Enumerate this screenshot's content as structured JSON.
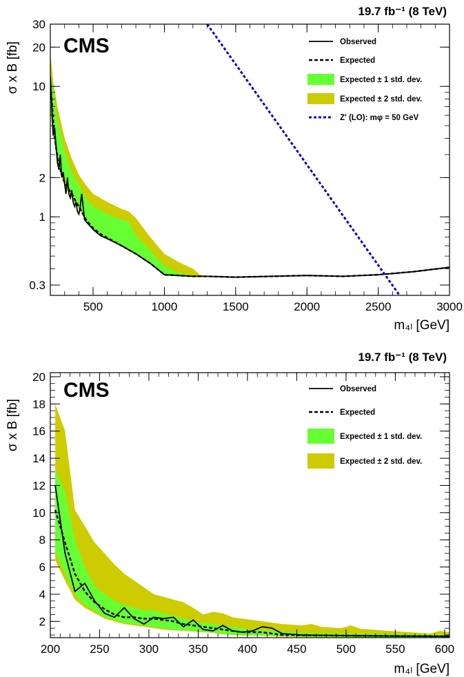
{
  "chart_data": [
    {
      "type": "line",
      "title": "",
      "cms_label": "CMS",
      "lumi_label": "19.7 fb⁻¹ (8 TeV)",
      "xlabel": "m₄ₗ [GeV]",
      "ylabel": "σ x B [fb]",
      "xlim": [
        200,
        3000
      ],
      "ylim": [
        0.25,
        30
      ],
      "yscale": "log",
      "x_ticks": [
        500,
        1000,
        1500,
        2000,
        2500,
        3000
      ],
      "x_tick_labels": [
        "500",
        "1000",
        "1500",
        "2000",
        "2500",
        "3000"
      ],
      "y_ticks": [
        0.3,
        1,
        2,
        10,
        20,
        30
      ],
      "y_tick_labels": [
        "0.3",
        "1",
        "2",
        "10",
        "20",
        "30"
      ],
      "legend_position": "top-right",
      "legend": [
        {
          "style": "solid",
          "label": "Observed"
        },
        {
          "style": "dashed",
          "label": "Expected"
        },
        {
          "style": "band1",
          "label": "Expected ± 1 std. dev."
        },
        {
          "style": "band2",
          "label": "Expected ± 2 std. dev."
        },
        {
          "style": "zprime",
          "label": "Z' (LO): mφ = 50 GeV"
        }
      ],
      "colors": {
        "band1": "#66ff33",
        "band2": "#cccc00",
        "zprime": "#0000cc",
        "line": "#000000"
      },
      "observed": {
        "x": [
          200,
          210,
          220,
          230,
          240,
          250,
          260,
          270,
          280,
          290,
          300,
          310,
          320,
          330,
          340,
          350,
          360,
          370,
          380,
          390,
          400,
          410,
          420,
          430,
          440,
          450,
          500,
          550,
          600,
          700,
          800,
          900,
          1000,
          1100,
          1200,
          1300,
          1500,
          1750,
          2000,
          2250,
          2500,
          2750,
          3000
        ],
        "y": [
          12,
          7,
          4.2,
          4.8,
          3.5,
          2.6,
          2.3,
          3.0,
          2.0,
          2.2,
          1.8,
          1.5,
          2.0,
          1.5,
          1.4,
          1.6,
          1.3,
          1.2,
          1.3,
          1.1,
          1.05,
          1.2,
          1.5,
          1.2,
          0.95,
          0.92,
          0.8,
          0.72,
          0.68,
          0.6,
          0.52,
          0.44,
          0.36,
          0.355,
          0.35,
          0.35,
          0.345,
          0.35,
          0.355,
          0.35,
          0.36,
          0.38,
          0.41
        ]
      },
      "expected": {
        "x": [
          200,
          210,
          220,
          230,
          240,
          250,
          260,
          270,
          280,
          290,
          300,
          320,
          340,
          360,
          380,
          400,
          420,
          440,
          450,
          500,
          550,
          600,
          700,
          800,
          900,
          1000,
          1100,
          1200,
          1300,
          1500,
          1750,
          2000,
          2250,
          2500,
          2750,
          3000
        ],
        "y": [
          10,
          7.8,
          5.5,
          4.2,
          3.4,
          2.9,
          2.5,
          2.3,
          2.1,
          1.95,
          1.85,
          1.7,
          1.55,
          1.45,
          1.3,
          1.2,
          1.1,
          1.0,
          0.95,
          0.82,
          0.74,
          0.69,
          0.6,
          0.52,
          0.44,
          0.36,
          0.355,
          0.35,
          0.35,
          0.345,
          0.35,
          0.355,
          0.35,
          0.36,
          0.38,
          0.41
        ]
      },
      "band1": {
        "x": [
          200,
          220,
          250,
          300,
          350,
          400,
          450,
          500,
          600,
          700,
          750,
          800,
          900,
          1000,
          1100,
          1200,
          1300,
          1500,
          1750,
          2000,
          2250,
          2500,
          2750,
          3000
        ],
        "lo": [
          7.2,
          4.5,
          2.8,
          1.8,
          1.45,
          1.2,
          0.95,
          0.82,
          0.69,
          0.6,
          0.56,
          0.52,
          0.44,
          0.36,
          0.355,
          0.35,
          0.35,
          0.345,
          0.35,
          0.355,
          0.35,
          0.36,
          0.38,
          0.41
        ],
        "hi": [
          13,
          9.5,
          5.5,
          3.2,
          2.2,
          1.75,
          1.4,
          1.2,
          1.05,
          0.95,
          0.92,
          0.72,
          0.55,
          0.42,
          0.37,
          0.355,
          0.35,
          0.345,
          0.35,
          0.355,
          0.35,
          0.36,
          0.38,
          0.41
        ]
      },
      "band2": {
        "x": [
          200,
          220,
          250,
          300,
          350,
          400,
          450,
          500,
          600,
          700,
          750,
          800,
          900,
          1000,
          1100,
          1200,
          1250,
          1300,
          1500,
          1750,
          2000,
          2250,
          2500,
          2750,
          3000
        ],
        "lo": [
          6.5,
          4.2,
          2.6,
          1.7,
          1.4,
          1.15,
          0.92,
          0.8,
          0.68,
          0.59,
          0.55,
          0.52,
          0.44,
          0.36,
          0.355,
          0.35,
          0.35,
          0.35,
          0.345,
          0.35,
          0.355,
          0.35,
          0.36,
          0.38,
          0.41
        ],
        "hi": [
          18,
          11,
          7,
          4,
          2.8,
          2.1,
          1.75,
          1.5,
          1.3,
          1.15,
          1.1,
          0.98,
          0.7,
          0.52,
          0.45,
          0.4,
          0.36,
          0.35,
          0.345,
          0.35,
          0.355,
          0.35,
          0.36,
          0.38,
          0.41
        ]
      },
      "zprime": {
        "x": [
          1300,
          2650
        ],
        "y": [
          30,
          0.25
        ]
      }
    },
    {
      "type": "line",
      "title": "",
      "cms_label": "CMS",
      "lumi_label": "19.7 fb⁻¹ (8 TeV)",
      "xlabel": "m₄ₗ [GeV]",
      "ylabel": "σ x B [fb]",
      "xlim": [
        200,
        605
      ],
      "ylim": [
        0.8,
        20.3
      ],
      "yscale": "linear",
      "x_ticks": [
        200,
        250,
        300,
        350,
        400,
        450,
        500,
        550,
        600
      ],
      "x_tick_labels": [
        "200",
        "250",
        "300",
        "350",
        "400",
        "450",
        "500",
        "550",
        "600"
      ],
      "y_ticks": [
        2,
        4,
        6,
        8,
        10,
        12,
        14,
        16,
        18,
        20
      ],
      "y_tick_labels": [
        "2",
        "4",
        "6",
        "8",
        "10",
        "12",
        "14",
        "16",
        "18",
        "20"
      ],
      "legend_position": "top-right",
      "legend": [
        {
          "style": "solid",
          "label": "Observed"
        },
        {
          "style": "dashed",
          "label": "Expected"
        },
        {
          "style": "band1",
          "label": "Expected ± 1 std. dev."
        },
        {
          "style": "band2",
          "label": "Expected ± 2 std. dev."
        }
      ],
      "colors": {
        "band1": "#66ff33",
        "band2": "#cccc00",
        "line": "#000000"
      },
      "observed": {
        "x": [
          205,
          215,
          225,
          235,
          245,
          255,
          265,
          275,
          285,
          295,
          305,
          315,
          325,
          335,
          345,
          355,
          365,
          375,
          385,
          395,
          405,
          415,
          425,
          435,
          445,
          455,
          500,
          550,
          600,
          605
        ],
        "y": [
          12,
          7,
          4.2,
          4.8,
          3.5,
          2.6,
          2.3,
          3.0,
          2.2,
          1.8,
          2.3,
          2.2,
          2.3,
          1.6,
          2.1,
          1.4,
          1.3,
          1.7,
          1.3,
          1.2,
          1.3,
          1.6,
          1.5,
          1.1,
          1.05,
          1.0,
          0.95,
          0.92,
          0.9,
          0.9
        ]
      },
      "expected": {
        "x": [
          205,
          215,
          225,
          235,
          245,
          255,
          265,
          275,
          285,
          295,
          305,
          315,
          325,
          335,
          345,
          355,
          365,
          375,
          385,
          395,
          405,
          415,
          425,
          435,
          445,
          455,
          500,
          550,
          600,
          605
        ],
        "y": [
          10.2,
          7.8,
          5.5,
          4.2,
          3.4,
          2.9,
          2.5,
          2.3,
          2.3,
          2.2,
          2.2,
          2.1,
          2.0,
          1.8,
          1.7,
          1.6,
          1.5,
          1.4,
          1.3,
          1.2,
          1.2,
          1.2,
          1.1,
          1.0,
          1.0,
          0.98,
          0.95,
          0.92,
          0.9,
          0.9
        ]
      },
      "band1": {
        "x": [
          205,
          215,
          225,
          235,
          245,
          255,
          265,
          275,
          285,
          295,
          305,
          315,
          325,
          335,
          345,
          355,
          365,
          375,
          385,
          395,
          405,
          415,
          425,
          435,
          445,
          455,
          500,
          550,
          600,
          605
        ],
        "lo": [
          7.2,
          5.5,
          4.0,
          3.2,
          2.8,
          2.3,
          2.1,
          1.9,
          1.8,
          1.7,
          1.6,
          1.5,
          1.4,
          1.35,
          1.3,
          1.25,
          1.2,
          1.1,
          1.05,
          1.0,
          1.0,
          0.98,
          0.95,
          0.92,
          0.9,
          0.88,
          0.85,
          0.83,
          0.82,
          0.82
        ],
        "hi": [
          13.2,
          11.5,
          8.0,
          6.0,
          4.6,
          4.0,
          3.5,
          3.2,
          3.0,
          2.8,
          2.8,
          2.6,
          2.4,
          2.2,
          2.0,
          1.9,
          1.8,
          1.7,
          1.6,
          1.5,
          1.4,
          1.35,
          1.3,
          1.25,
          1.2,
          1.15,
          1.1,
          1.05,
          1.0,
          1.0
        ]
      },
      "band2": {
        "x": [
          205,
          215,
          225,
          235,
          245,
          255,
          265,
          275,
          285,
          295,
          305,
          315,
          325,
          335,
          345,
          355,
          365,
          375,
          385,
          395,
          405,
          415,
          425,
          435,
          445,
          455,
          465,
          475,
          485,
          495,
          505,
          515,
          525,
          535,
          545,
          555,
          565,
          575,
          585,
          595,
          605
        ],
        "lo": [
          6.5,
          5.0,
          3.6,
          3.0,
          2.6,
          2.2,
          2.0,
          1.8,
          1.7,
          1.6,
          1.5,
          1.4,
          1.35,
          1.3,
          1.25,
          1.2,
          1.15,
          1.05,
          1.0,
          0.95,
          0.95,
          0.93,
          0.9,
          0.88,
          0.86,
          0.85,
          0.84,
          0.83,
          0.83,
          0.82,
          0.82,
          0.82,
          0.81,
          0.81,
          0.81,
          0.81,
          0.8,
          0.8,
          0.8,
          0.8,
          0.8
        ],
        "hi": [
          18,
          16,
          10.2,
          9,
          7.8,
          7,
          6.2,
          5.5,
          5.0,
          4.5,
          4.0,
          3.8,
          3.6,
          3.4,
          3.0,
          2.5,
          2.7,
          2.6,
          2.3,
          2.2,
          2.1,
          2.0,
          1.9,
          1.8,
          1.75,
          1.7,
          1.8,
          1.6,
          1.55,
          1.5,
          1.7,
          1.45,
          1.4,
          1.35,
          1.3,
          1.25,
          1.2,
          1.15,
          1.1,
          1.3,
          1.2
        ]
      }
    }
  ]
}
